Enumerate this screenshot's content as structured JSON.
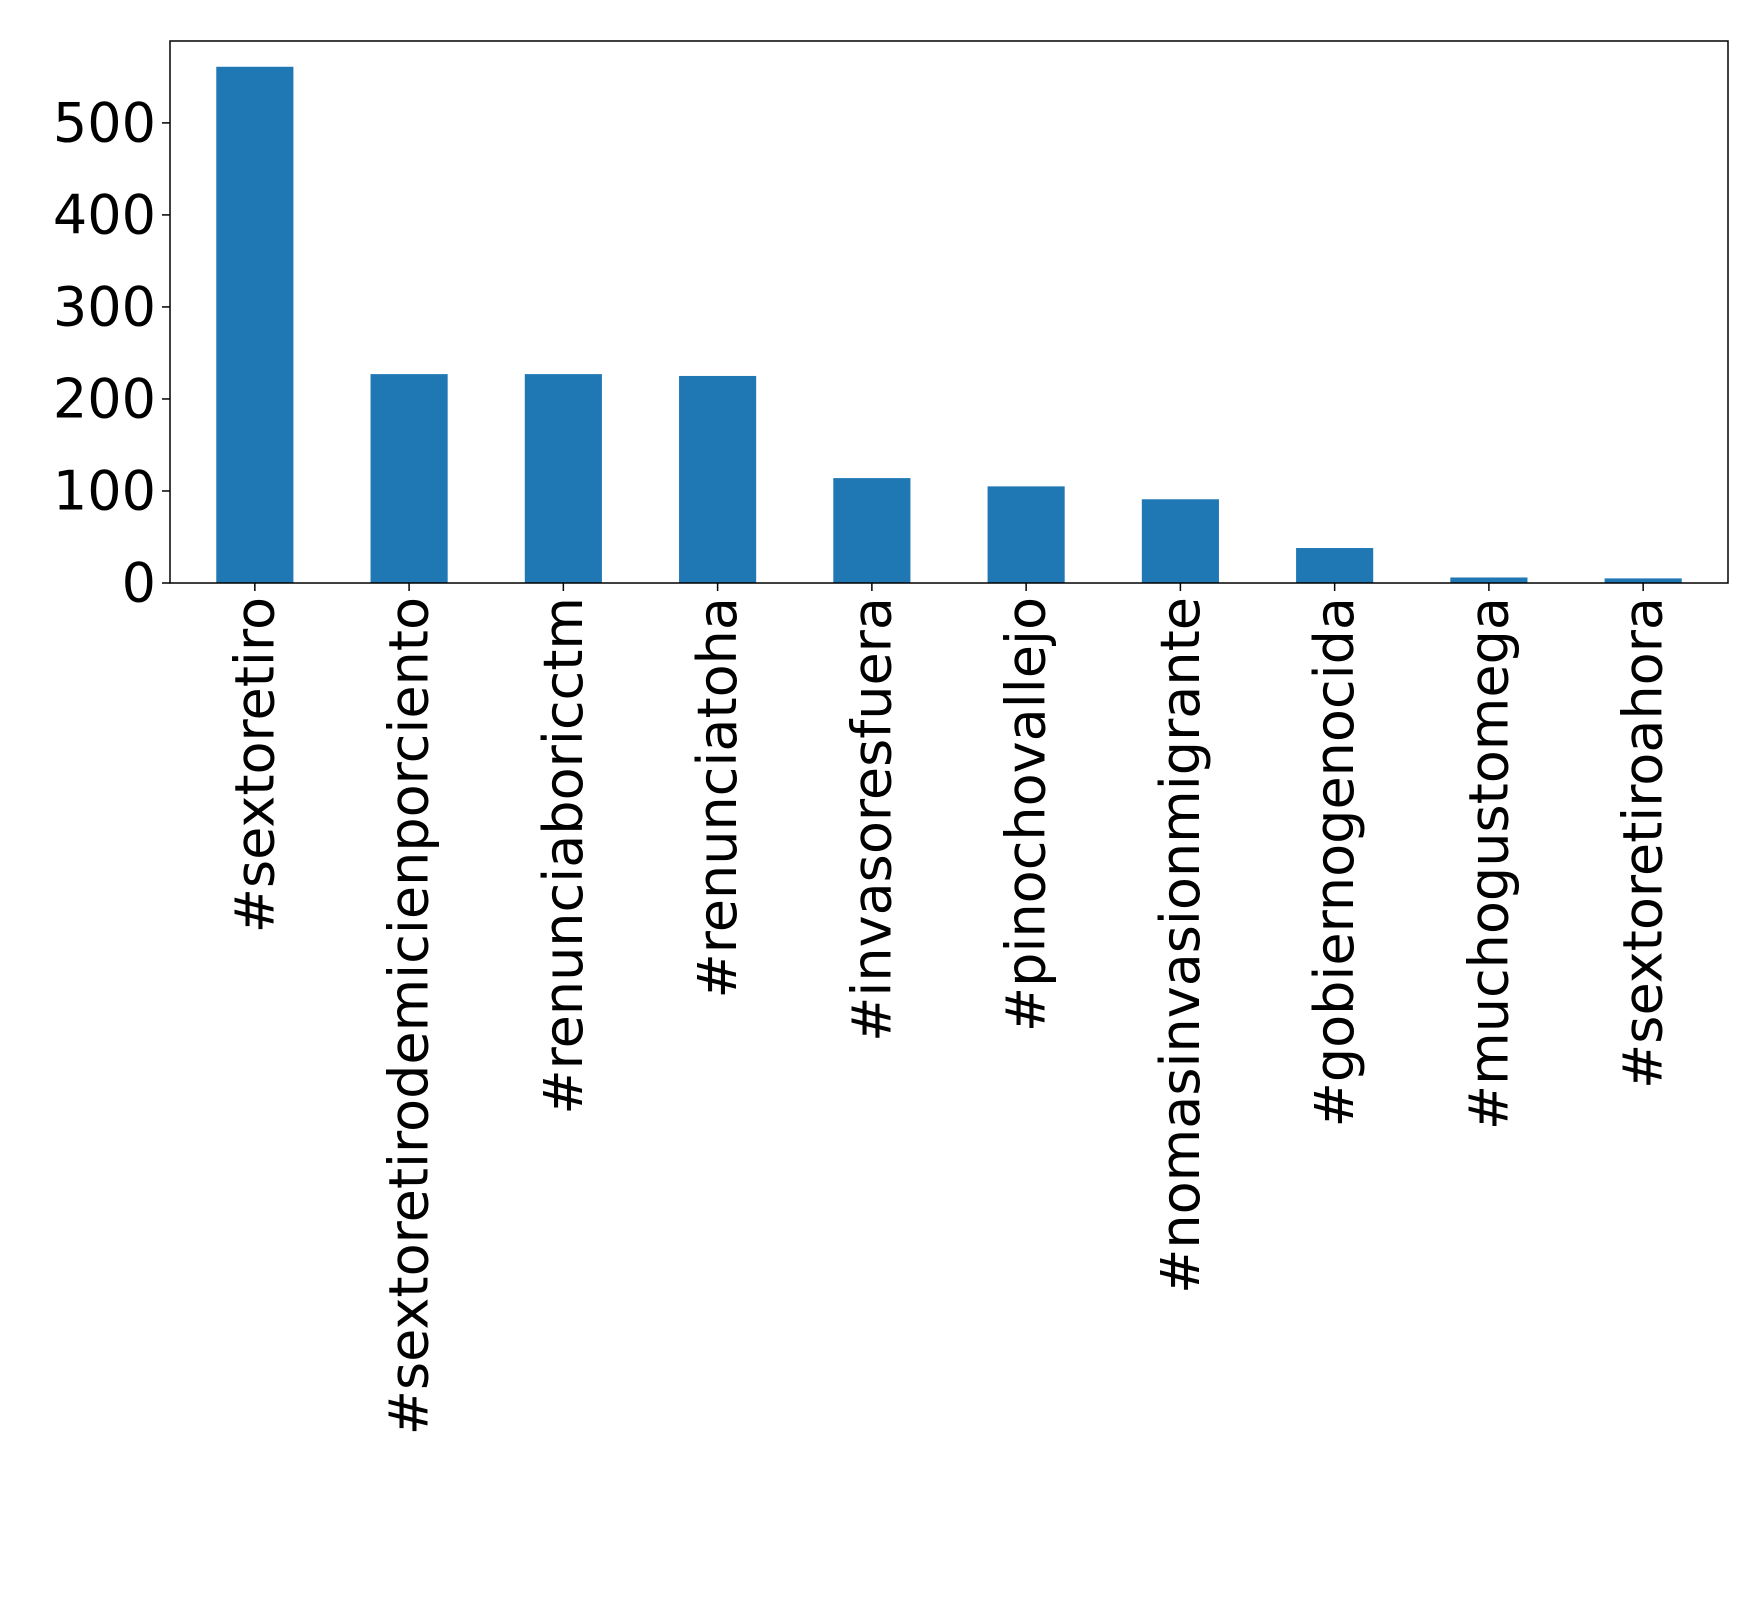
{
  "chart_data": {
    "type": "bar",
    "title": "",
    "xlabel": "",
    "ylabel": "",
    "categories": [
      "#sextoretiro",
      "#sextoretirodemicienporciento",
      "#renunciaboricctm",
      "#renunciatoha",
      "#invasoresfuera",
      "#pinochovallejo",
      "#nomasinvasionmigrante",
      "#gobiernogenocida",
      "#muchogustomega",
      "#sextoretiroahora"
    ],
    "values": [
      561,
      227,
      227,
      225,
      114,
      105,
      91,
      38,
      6,
      5
    ],
    "ylim": [
      0,
      589
    ],
    "yticks": [
      0,
      100,
      200,
      300,
      400,
      500
    ],
    "grid": false,
    "legend": "none",
    "bar_color": "#1f77b4"
  }
}
